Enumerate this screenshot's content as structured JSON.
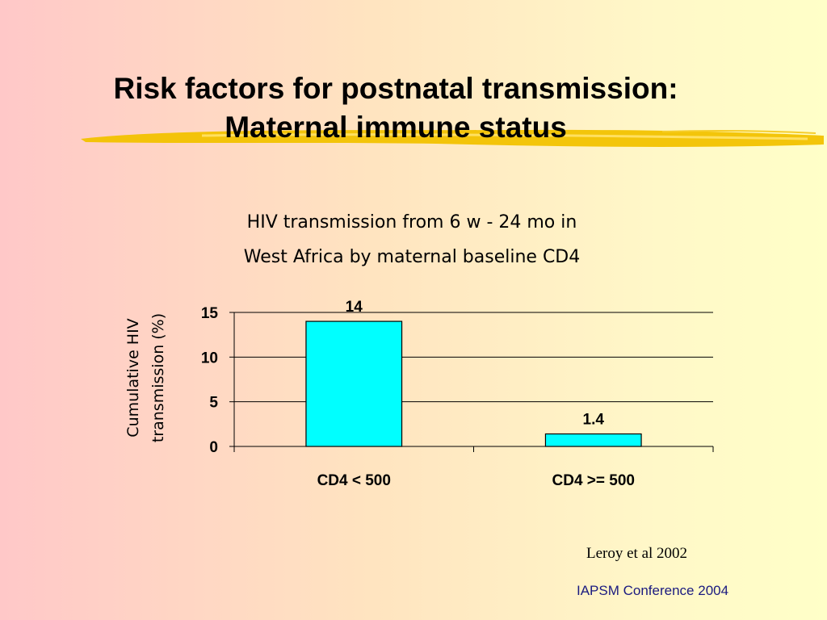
{
  "slide": {
    "title_line1": "Risk factors for postnatal transmission:",
    "title_line2": "Maternal immune status",
    "source": "Leroy et al 2002",
    "footer": "IAPSM  Conference 2004",
    "accent_highlight": "#f2c200"
  },
  "chart_data": {
    "type": "bar",
    "title_line1": "HIV transmission from 6 w - 24 mo in",
    "title_line2": "West Africa by maternal baseline CD4",
    "ylabel_line1": "Cumulative HIV",
    "ylabel_line2": "transmission (%)",
    "xlabel": "",
    "categories": [
      "CD4 < 500",
      "CD4 >= 500"
    ],
    "values": [
      14,
      1.4
    ],
    "data_labels": [
      "14",
      "1.4"
    ],
    "ylim": [
      0,
      15
    ],
    "yticks": [
      "0",
      "5",
      "10",
      "15"
    ],
    "grid": true,
    "legend": "none",
    "bar_color": "#00ffff"
  }
}
